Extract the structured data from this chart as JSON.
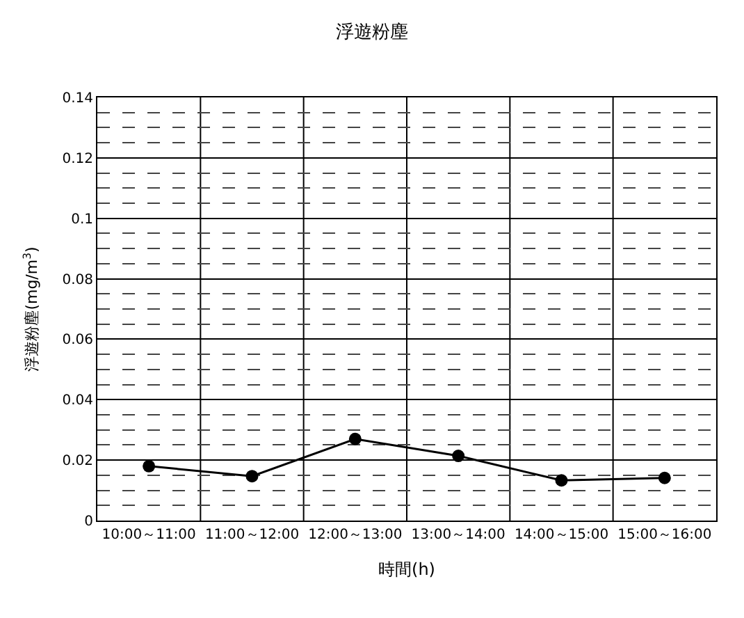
{
  "chart_data": {
    "type": "line",
    "title": "浮遊粉塵",
    "xlabel": "時間(h)",
    "ylabel": "浮遊粉塵(mg/m$^{3}$)",
    "categories": [
      "10:00～11:00",
      "11:00～12:00",
      "12:00～13:00",
      "13:00～14:00",
      "14:00～15:00",
      "15:00～16:00"
    ],
    "series": [
      {
        "color": "#000000",
        "values": [
          0.018,
          0.0147,
          0.027,
          0.0214,
          0.0133,
          0.0141
        ]
      }
    ],
    "ylim": [
      0,
      0.14
    ],
    "yticks": [
      0,
      0.02,
      0.04,
      0.06,
      0.08,
      0.1,
      0.12,
      0.14
    ],
    "grid": true,
    "marker": "circle",
    "line_style": "solid"
  }
}
